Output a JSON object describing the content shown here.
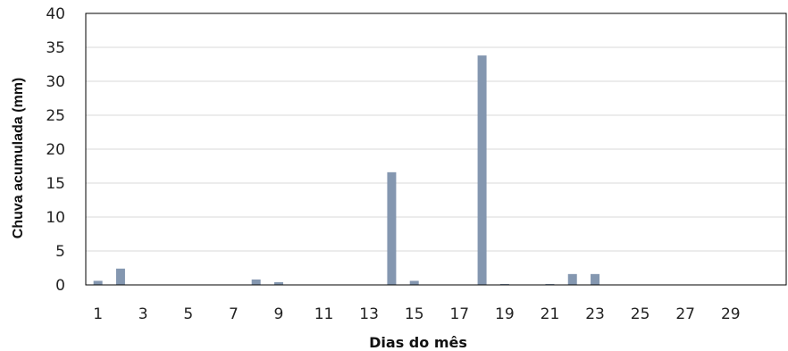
{
  "chart_data": {
    "type": "bar",
    "xlabel": "Dias do mês",
    "ylabel": "Chuva acumulada (mm)",
    "ylim": [
      0,
      40
    ],
    "yticks": [
      0,
      5,
      10,
      15,
      20,
      25,
      30,
      35,
      40
    ],
    "grid": true,
    "bar_color": "#8497b0",
    "x": [
      1,
      2,
      3,
      4,
      5,
      6,
      7,
      8,
      9,
      10,
      11,
      12,
      13,
      14,
      15,
      16,
      17,
      18,
      19,
      20,
      21,
      22,
      23,
      24,
      25,
      26,
      27,
      28,
      29,
      30,
      31
    ],
    "xtick_labels": [
      "1",
      "3",
      "5",
      "7",
      "9",
      "11",
      "13",
      "15",
      "17",
      "19",
      "21",
      "23",
      "25",
      "27",
      "29"
    ],
    "values": [
      0.6,
      2.4,
      0,
      0,
      0,
      0,
      0,
      0.8,
      0.4,
      0,
      0,
      0,
      0,
      16.6,
      0.6,
      0,
      0,
      33.8,
      0.1,
      0,
      0.1,
      1.6,
      1.6,
      0,
      0,
      0,
      0,
      0,
      0,
      0,
      0
    ]
  }
}
